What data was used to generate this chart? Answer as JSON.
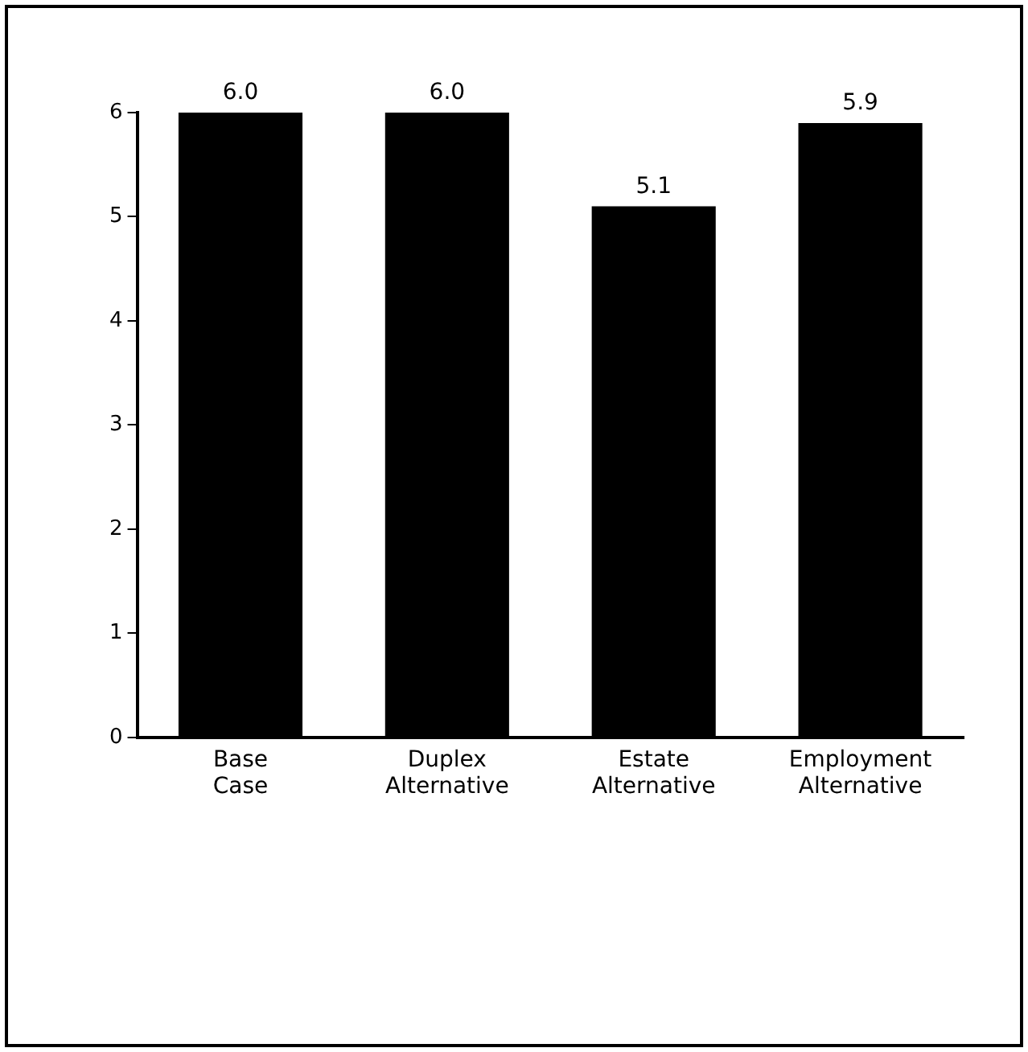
{
  "chart_data": {
    "type": "bar",
    "categories": [
      "Base Case",
      "Duplex Alternative",
      "Estate Alternative",
      "Employment Alternative"
    ],
    "values": [
      6.0,
      6.0,
      5.1,
      5.9
    ],
    "value_labels": [
      "6.0",
      "6.0",
      "5.1",
      "5.9"
    ],
    "color": "#000000",
    "ylim": [
      0,
      6
    ],
    "yticks": [
      0,
      1,
      2,
      3,
      4,
      5,
      6
    ],
    "grid": false
  }
}
